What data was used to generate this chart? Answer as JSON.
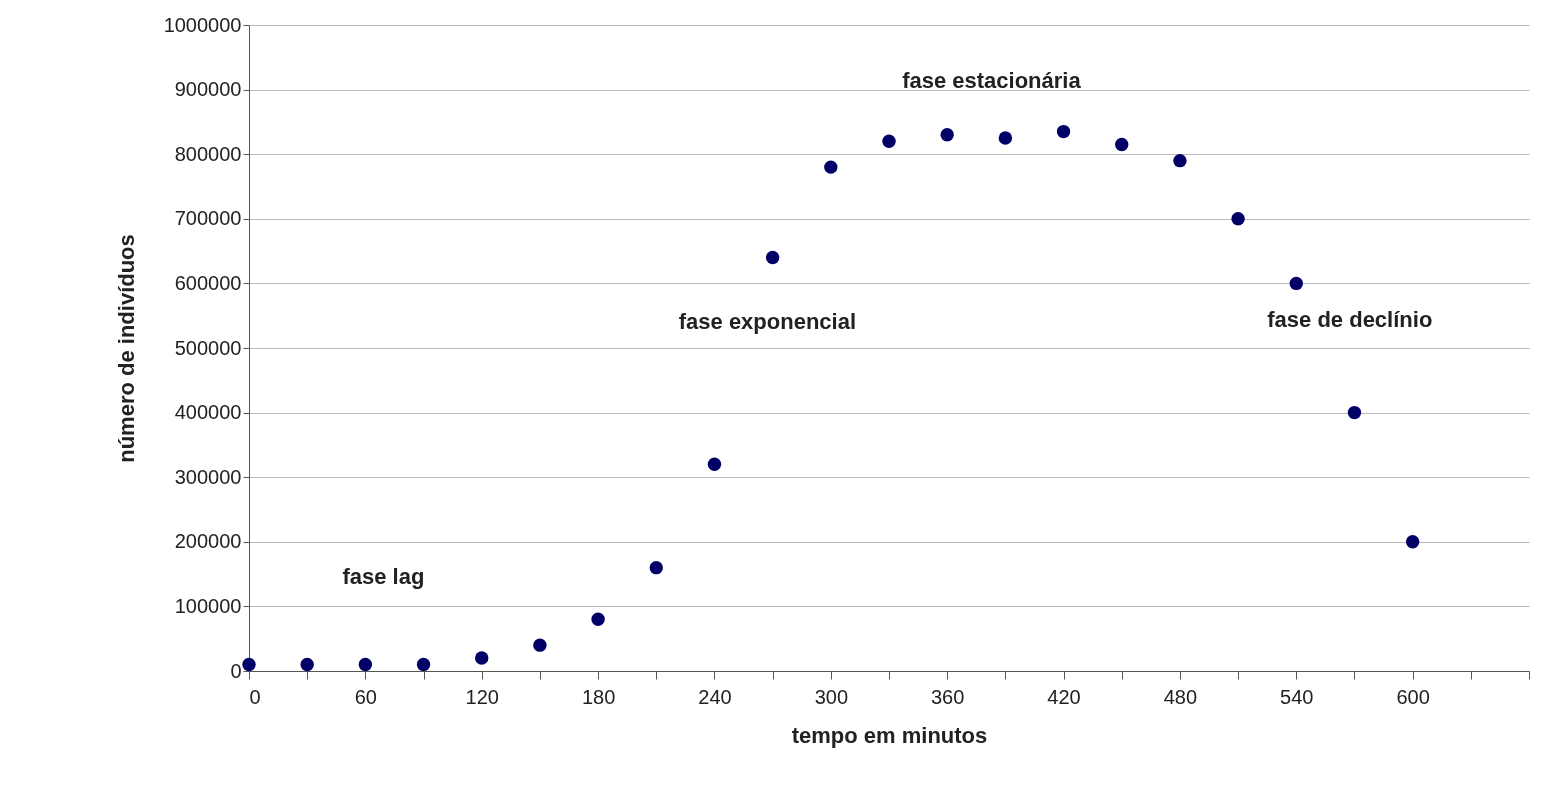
{
  "chart_data": {
    "type": "scatter",
    "xlabel": "tempo em minutos",
    "ylabel": "número de indivíduos",
    "x": [
      0,
      30,
      60,
      90,
      120,
      150,
      180,
      210,
      240,
      270,
      300,
      330,
      360,
      390,
      420,
      450,
      480,
      510,
      540,
      570,
      600
    ],
    "series": [
      {
        "color": "#000066",
        "values": [
          10000,
          10000,
          10000,
          10000,
          20000,
          40000,
          80000,
          160000,
          320000,
          640000,
          780000,
          820000,
          830000,
          825000,
          835000,
          815000,
          790000,
          700000,
          600000,
          400000,
          200000
        ]
      }
    ],
    "xlim": [
      0,
      660
    ],
    "xticks": [
      0,
      {
        "value": 30,
        "label": null
      },
      60,
      {
        "value": 90,
        "label": null
      },
      120,
      {
        "value": 150,
        "label": null
      },
      180,
      {
        "value": 210,
        "label": null
      },
      240,
      {
        "value": 270,
        "label": null
      },
      300,
      {
        "value": 330,
        "label": null
      },
      360,
      {
        "value": 390,
        "label": null
      },
      420,
      {
        "value": 450,
        "label": null
      },
      480,
      {
        "value": 510,
        "label": null
      },
      540,
      {
        "value": 570,
        "label": null
      },
      600,
      {
        "value": 630,
        "label": null
      },
      {
        "value": 660,
        "label": null
      }
    ],
    "ylim": [
      0,
      1000000
    ],
    "yticks": [
      0,
      100000,
      200000,
      300000,
      400000,
      500000,
      600000,
      700000,
      800000,
      900000,
      1000000
    ],
    "grid": "y",
    "marker": "circle",
    "legend": false,
    "annotations": [
      "fase lag",
      "fase exponencial",
      "fase estacionária",
      "fase de declínio"
    ]
  }
}
